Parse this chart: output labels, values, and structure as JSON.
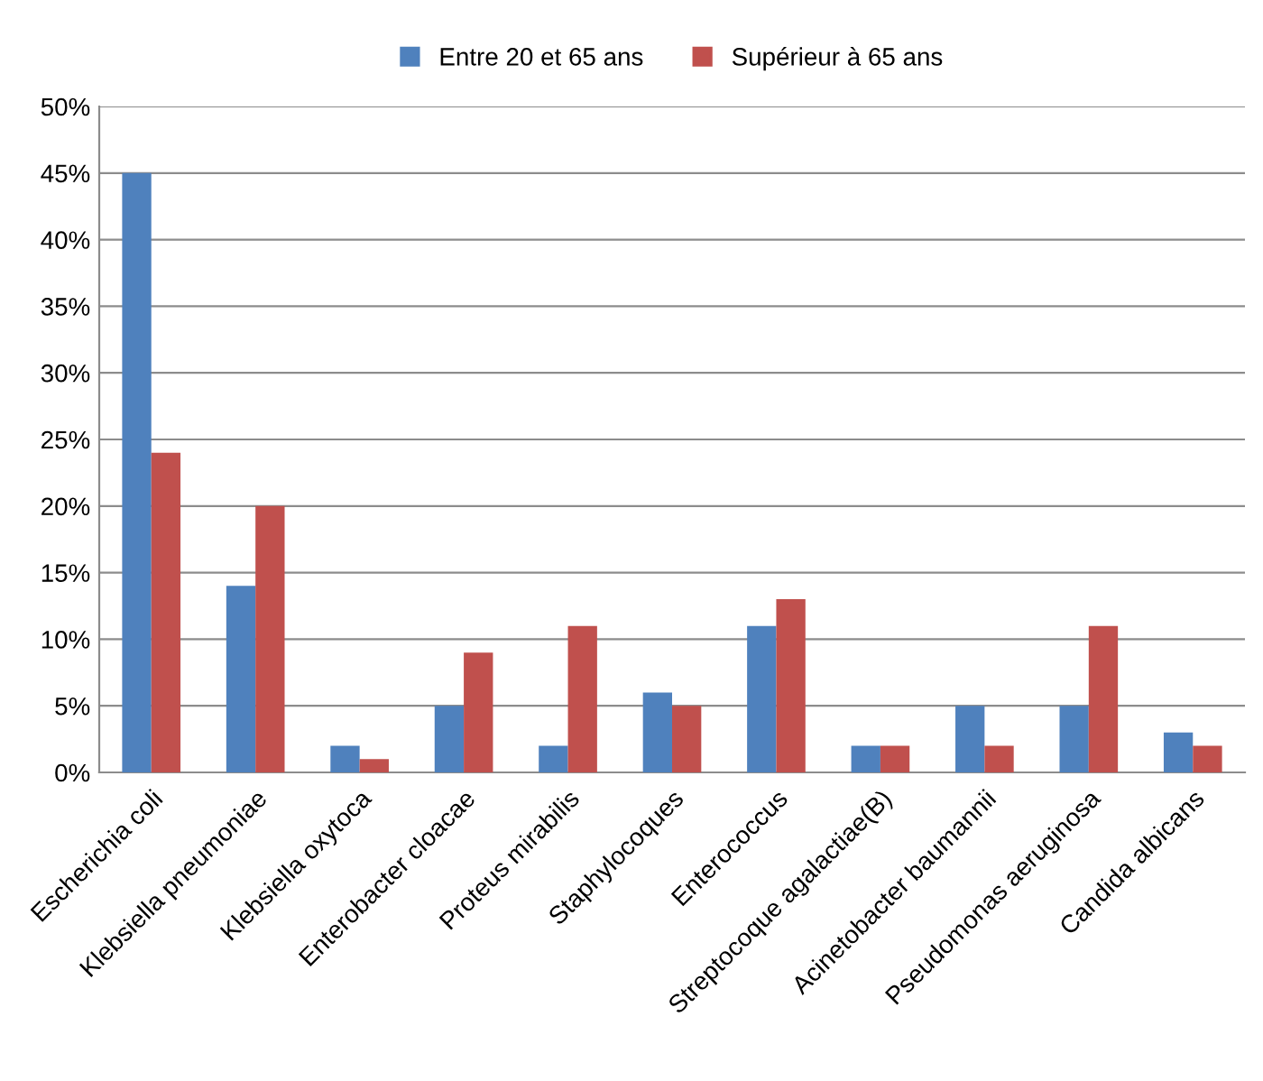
{
  "chart_data": {
    "type": "bar",
    "categories": [
      "Escherichia coli",
      "Klebsiella pneumoniae",
      "Klebsiella oxytoca",
      "Enterobacter cloacae",
      "Proteus mirabilis",
      "Staphylocoques",
      "Enterococcus",
      "Streptocoque agalactiae(B)",
      "Acinetobacter baumannii",
      "Pseudomonas aeruginosa",
      "Candida albicans"
    ],
    "series": [
      {
        "name": "Entre 20 et 65 ans",
        "color": "#4f81bd",
        "values": [
          45,
          14,
          2,
          5,
          2,
          6,
          11,
          2,
          5,
          5,
          3
        ]
      },
      {
        "name": "Supérieur à 65 ans",
        "color": "#c0504d",
        "values": [
          24,
          20,
          1,
          9,
          11,
          5,
          13,
          2,
          2,
          11,
          2
        ]
      }
    ],
    "ylim": [
      0,
      50
    ],
    "yticks": [
      {
        "value": 0,
        "label": "0%"
      },
      {
        "value": 5,
        "label": "5%"
      },
      {
        "value": 10,
        "label": "10%"
      },
      {
        "value": 15,
        "label": "15%"
      },
      {
        "value": 20,
        "label": "20%"
      },
      {
        "value": 25,
        "label": "25%"
      },
      {
        "value": 30,
        "label": "30%"
      },
      {
        "value": 35,
        "label": "35%"
      },
      {
        "value": 40,
        "label": "40%"
      },
      {
        "value": 45,
        "label": "45%"
      },
      {
        "value": 50,
        "label": "50%"
      }
    ],
    "grid": "y",
    "legend": "top"
  }
}
